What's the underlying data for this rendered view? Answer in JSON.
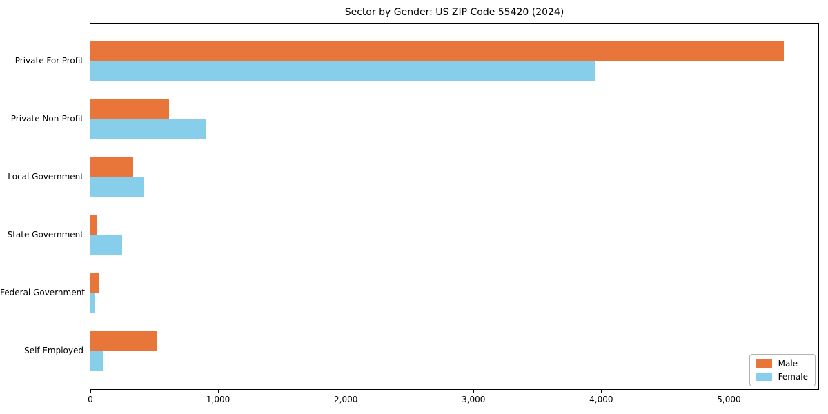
{
  "chart_data": {
    "type": "bar",
    "orientation": "horizontal",
    "title": "Sector by Gender: US ZIP Code 55420 (2024)",
    "categories": [
      "Private For-Profit",
      "Private Non-Profit",
      "Local Government",
      "State Government",
      "Federal Government",
      "Self-Employed"
    ],
    "series": [
      {
        "name": "Male",
        "color": "#E8763B",
        "values": [
          5430,
          615,
          335,
          55,
          70,
          520
        ]
      },
      {
        "name": "Female",
        "color": "#87CEEB",
        "values": [
          3950,
          900,
          420,
          250,
          35,
          100
        ]
      }
    ],
    "xlim": [
      0,
      5700
    ],
    "x_ticks": [
      0,
      1000,
      2000,
      3000,
      4000,
      5000
    ],
    "x_tick_labels": [
      "0",
      "1,000",
      "2,000",
      "3,000",
      "4,000",
      "5,000"
    ],
    "xlabel": "",
    "ylabel": "",
    "grid": false,
    "legend_position": "lower right"
  }
}
